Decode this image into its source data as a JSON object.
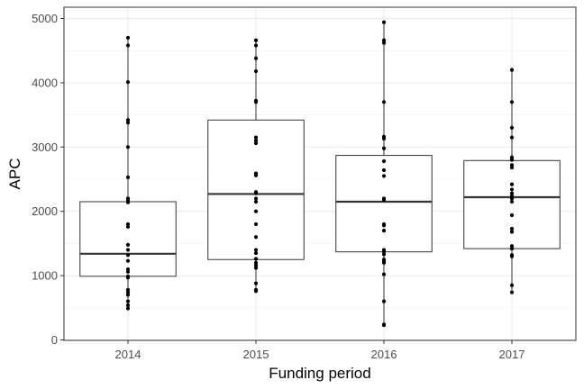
{
  "chart_data": {
    "type": "box",
    "title": "",
    "xlabel": "Funding period",
    "ylabel": "APC",
    "ylim": [
      0,
      5200
    ],
    "yticks": [
      0,
      1000,
      2000,
      3000,
      4000,
      5000
    ],
    "categories": [
      "2014",
      "2015",
      "2016",
      "2017"
    ],
    "grid": true,
    "boxes": [
      {
        "category": "2014",
        "q1": 990,
        "median": 1340,
        "q3": 2150,
        "whisker_low": 490,
        "whisker_high": 4700
      },
      {
        "category": "2015",
        "q1": 1250,
        "median": 2270,
        "q3": 3420,
        "whisker_low": 760,
        "whisker_high": 4660
      },
      {
        "category": "2016",
        "q1": 1370,
        "median": 2150,
        "q3": 2870,
        "whisker_low": 230,
        "whisker_high": 4940
      },
      {
        "category": "2017",
        "q1": 1420,
        "median": 2220,
        "q3": 2790,
        "whisker_low": 740,
        "whisker_high": 4200
      }
    ],
    "points": [
      {
        "category": "2014",
        "values": [
          4700,
          4580,
          4010,
          3420,
          3380,
          3000,
          2530,
          2200,
          2170,
          2140,
          1800,
          1760,
          1480,
          1400,
          1320,
          1230,
          1100,
          1060,
          990,
          970,
          780,
          740,
          700,
          600,
          540,
          490
        ]
      },
      {
        "category": "2015",
        "values": [
          4660,
          4580,
          4380,
          4180,
          3720,
          3700,
          3150,
          3100,
          3060,
          2590,
          2560,
          2300,
          2280,
          2200,
          2150,
          2000,
          1800,
          1600,
          1400,
          1350,
          1260,
          1200,
          1160,
          1120,
          880,
          780,
          760
        ]
      },
      {
        "category": "2016",
        "values": [
          4940,
          4660,
          4620,
          3700,
          3160,
          3130,
          2980,
          2780,
          2640,
          2550,
          2200,
          2180,
          1800,
          1780,
          1700,
          1400,
          1370,
          1330,
          1250,
          1220,
          1200,
          1020,
          600,
          240,
          230
        ]
      },
      {
        "category": "2017",
        "values": [
          4200,
          3700,
          3300,
          3150,
          2840,
          2800,
          2720,
          2680,
          2420,
          2340,
          2280,
          2240,
          2200,
          2150,
          1940,
          1730,
          1680,
          1460,
          1420,
          1320,
          1300,
          850,
          740
        ]
      }
    ]
  }
}
